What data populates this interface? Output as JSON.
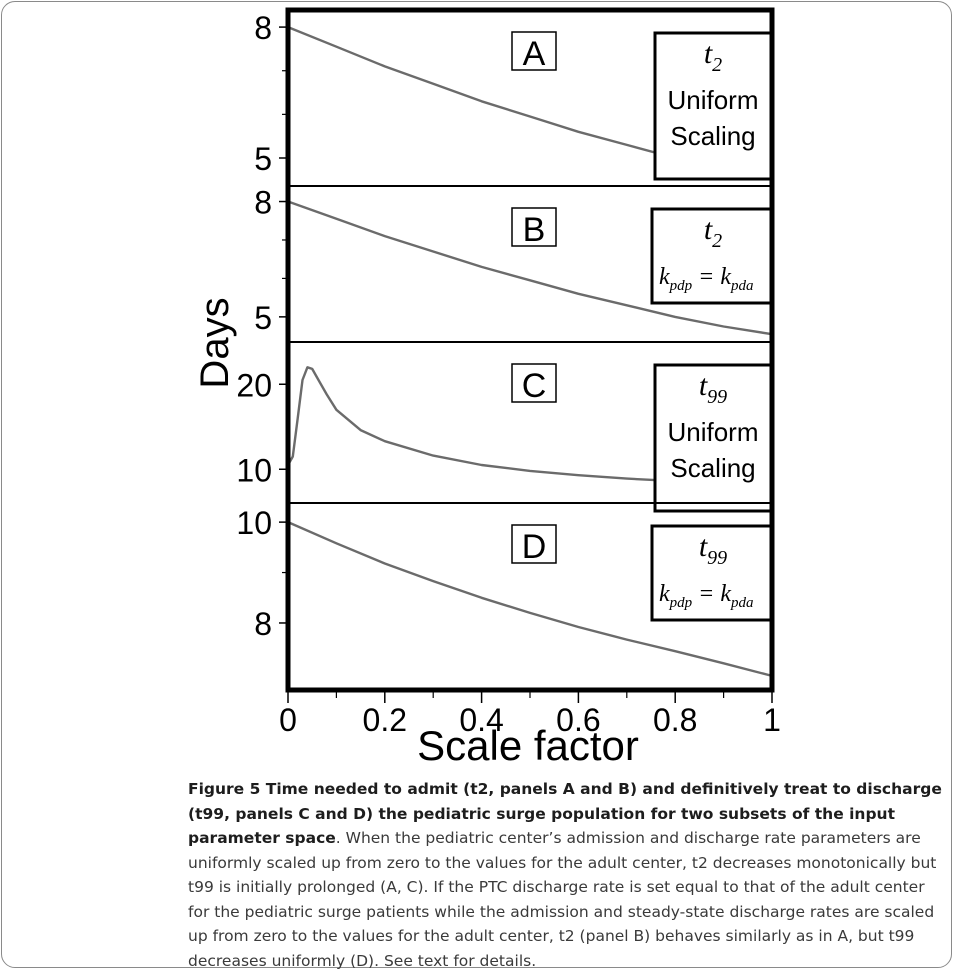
{
  "chart_data": [
    {
      "type": "line",
      "panel_label": "A",
      "annotation": [
        "t",
        "2",
        "Uniform",
        "Scaling"
      ],
      "x": [
        0,
        0.1,
        0.2,
        0.3,
        0.4,
        0.5,
        0.6,
        0.7,
        0.8,
        0.9,
        1.0
      ],
      "y": [
        8.0,
        7.55,
        7.1,
        6.7,
        6.3,
        5.95,
        5.6,
        5.3,
        5.0,
        4.75,
        4.55
      ],
      "ylim": [
        4.45,
        8.3
      ],
      "yticks": [
        8,
        5
      ],
      "yminor": [
        7,
        6
      ]
    },
    {
      "type": "line",
      "panel_label": "B",
      "annotation": [
        "t",
        "2",
        "k",
        "pdp",
        "= k",
        "pda"
      ],
      "x": [
        0,
        0.1,
        0.2,
        0.3,
        0.4,
        0.5,
        0.6,
        0.7,
        0.8,
        0.9,
        1.0
      ],
      "y": [
        8.0,
        7.55,
        7.1,
        6.7,
        6.3,
        5.95,
        5.6,
        5.3,
        5.0,
        4.75,
        4.55
      ],
      "ylim": [
        4.45,
        8.3
      ],
      "yticks": [
        8,
        5
      ],
      "yminor": [
        7,
        6
      ]
    },
    {
      "type": "line",
      "panel_label": "C",
      "annotation": [
        "t",
        "99",
        "Uniform",
        "Scaling"
      ],
      "x": [
        0,
        0.01,
        0.02,
        0.03,
        0.04,
        0.05,
        0.06,
        0.08,
        0.1,
        0.15,
        0.2,
        0.3,
        0.4,
        0.5,
        0.6,
        0.7,
        0.8,
        0.9,
        1.0
      ],
      "y": [
        10.5,
        11.5,
        16.0,
        20.5,
        22.0,
        21.8,
        20.8,
        18.8,
        17.0,
        14.6,
        13.3,
        11.6,
        10.5,
        9.8,
        9.3,
        8.9,
        8.6,
        8.2,
        7.8
      ],
      "ylim": [
        6.5,
        24.5
      ],
      "yticks": [
        20,
        10
      ],
      "yminor": []
    },
    {
      "type": "line",
      "panel_label": "D",
      "annotation": [
        "t",
        "99",
        "k",
        "pdp",
        "= k",
        "pda"
      ],
      "x": [
        0,
        0.1,
        0.2,
        0.3,
        0.4,
        0.5,
        0.6,
        0.7,
        0.8,
        0.9,
        1.0
      ],
      "y": [
        10.0,
        9.58,
        9.18,
        8.83,
        8.5,
        8.2,
        7.92,
        7.67,
        7.44,
        7.2,
        6.95
      ],
      "ylim": [
        6.75,
        10.3
      ],
      "yticks": [
        10,
        8
      ],
      "yminor": [
        9
      ]
    }
  ],
  "axes": {
    "ylabel": "Days",
    "xlabel": "Scale factor",
    "xticks": [
      "0",
      "0.2",
      "0.4",
      "0.6",
      "0.8",
      "1"
    ],
    "xlim": [
      0,
      1
    ]
  },
  "caption": {
    "bold": "Figure 5 Time needed to admit (t2, panels A and B) and definitively treat to discharge (t99, panels C and D) the pediatric surge population for two subsets of the input parameter space",
    "text": ". When the pediatric center’s admission and discharge rate parameters are uniformly scaled up from zero to the values for the adult center, t2 decreases monotonically but t99 is initially prolonged (A, C). If the PTC discharge rate is set equal to that of the adult center for the pediatric surge patients while the admission and steady-state discharge rates are scaled up from zero to the values for the adult center, t2 (panel B) behaves similarly as in A, but t99 decreases uniformly (D). See text for details."
  }
}
